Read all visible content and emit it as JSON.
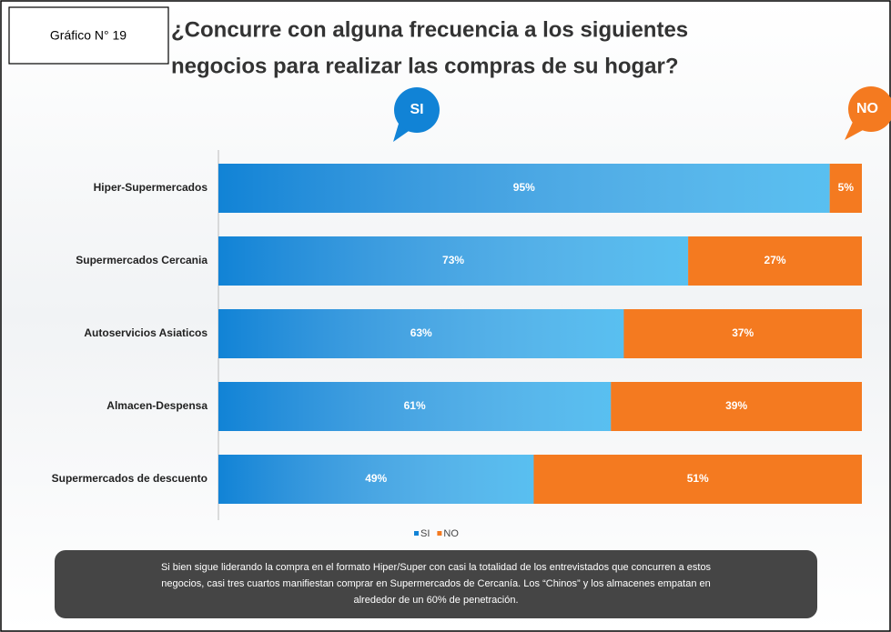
{
  "chart_data": {
    "type": "stacked_barh",
    "badge": "Gráfico N° 19",
    "title": [
      "¿Concurre con alguna frecuencia a los siguientes",
      "negocios para realizar las compras de su hogar?"
    ],
    "categories": [
      "Hiper-Supermercados",
      "Supermercados Cercania",
      "Autoservicios Asiaticos",
      "Almacen-Despensa",
      "Supermercados de descuento"
    ],
    "series": [
      {
        "name": "SI",
        "color": "#1183d6",
        "values": [
          95,
          73,
          63,
          61,
          49
        ],
        "value_labels": [
          "95%",
          "73%",
          "63%",
          "61%",
          "49%"
        ]
      },
      {
        "name": "NO",
        "color": "#f47a20",
        "values": [
          5,
          27,
          37,
          39,
          51
        ],
        "value_labels": [
          "5%",
          "27%",
          "37%",
          "39%",
          "51%"
        ]
      }
    ],
    "xlim": [
      0,
      100
    ],
    "legend": "bottom",
    "note": [
      "Si bien sigue liderando la compra en el formato Hiper/Super con casi la totalidad de los entrevistados que concurren a estos",
      "negocios, casi tres cuartos manifiestan comprar en Supermercados de Cercanía. Los “Chinos” y los almacenes empatan en",
      "alrededor de un 60% de penetración."
    ]
  }
}
